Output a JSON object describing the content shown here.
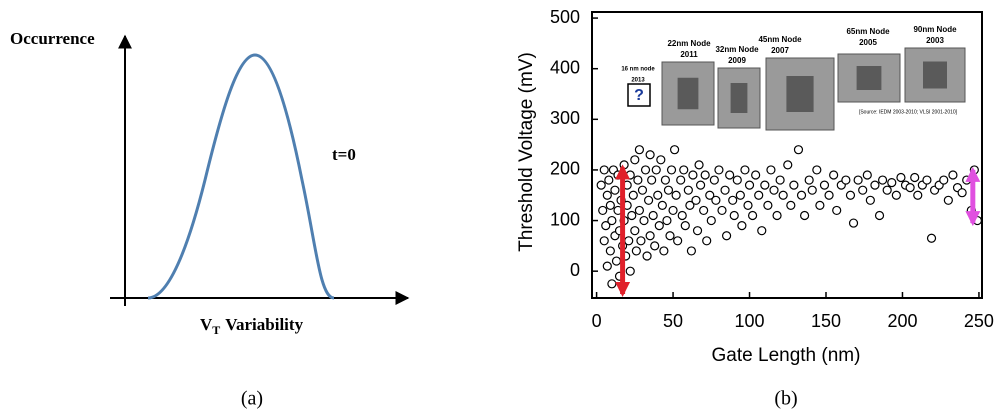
{
  "chart_data": [
    {
      "type": "curve",
      "ylabel": "Occurrence",
      "xlabel_symbol": "V",
      "xlabel_subscript": "T",
      "xlabel_rest": "Variability",
      "annotation": "t=0",
      "caption": "(a)",
      "color": "#4f7fb0"
    },
    {
      "type": "scatter",
      "xlabel": "Gate Length (nm)",
      "ylabel": "Threshold Voltage (mV)",
      "caption": "(b)",
      "xlim": [
        -3,
        252
      ],
      "ylim": [
        -53,
        512
      ],
      "xticks": [
        0,
        50,
        100,
        150,
        200,
        250
      ],
      "yticks": [
        0,
        100,
        200,
        300,
        400,
        500
      ],
      "grid": false,
      "marker_color": "#000000",
      "insets": [
        {
          "lines": [
            "16 nm node",
            "2013"
          ],
          "symbol": "?"
        },
        {
          "lines": [
            "22nm Node",
            "2011"
          ]
        },
        {
          "lines": [
            "32nm Node",
            "2009"
          ]
        },
        {
          "lines": [
            "45nm Node",
            "2007"
          ]
        },
        {
          "lines": [
            "65nm Node",
            "2005"
          ]
        },
        {
          "lines": [
            "90nm Node",
            "2003"
          ]
        }
      ],
      "source_note": "[Source: IEDM 2003-2010; VLSI 2001-2010]",
      "range_arrows": [
        {
          "x": 17,
          "low": -45,
          "high": 205,
          "color": "#e0202a"
        },
        {
          "x": 246,
          "low": 95,
          "high": 200,
          "color": "#e050e0"
        }
      ],
      "x": [
        3,
        4,
        5,
        5,
        6,
        7,
        7,
        8,
        9,
        9,
        10,
        10,
        11,
        12,
        12,
        13,
        14,
        14,
        15,
        15,
        16,
        17,
        18,
        18,
        19,
        20,
        20,
        21,
        22,
        22,
        23,
        24,
        25,
        25,
        26,
        27,
        28,
        28,
        29,
        30,
        31,
        32,
        33,
        34,
        35,
        35,
        36,
        37,
        38,
        39,
        40,
        41,
        42,
        43,
        44,
        45,
        46,
        47,
        48,
        49,
        50,
        51,
        52,
        53,
        55,
        56,
        57,
        58,
        60,
        61,
        62,
        63,
        65,
        66,
        67,
        68,
        70,
        71,
        72,
        74,
        75,
        77,
        78,
        80,
        82,
        84,
        85,
        87,
        89,
        90,
        92,
        94,
        95,
        97,
        99,
        100,
        102,
        104,
        106,
        108,
        110,
        112,
        114,
        116,
        118,
        120,
        122,
        125,
        127,
        129,
        132,
        134,
        136,
        139,
        141,
        144,
        146,
        149,
        152,
        155,
        157,
        160,
        163,
        166,
        168,
        171,
        174,
        177,
        179,
        182,
        185,
        187,
        190,
        193,
        196,
        199,
        202,
        205,
        208,
        210,
        213,
        216,
        219,
        221,
        224,
        227,
        230,
        233,
        236,
        239,
        242,
        245,
        247,
        249
      ],
      "y": [
        170,
        120,
        60,
        200,
        90,
        150,
        10,
        180,
        40,
        130,
        100,
        -25,
        200,
        70,
        160,
        20,
        120,
        190,
        80,
        -10,
        140,
        50,
        210,
        100,
        30,
        170,
        130,
        60,
        190,
        0,
        110,
        150,
        80,
        220,
        40,
        180,
        120,
        240,
        60,
        160,
        100,
        200,
        30,
        140,
        230,
        70,
        180,
        110,
        50,
        200,
        150,
        90,
        220,
        130,
        40,
        180,
        100,
        160,
        70,
        200,
        120,
        240,
        150,
        60,
        180,
        110,
        200,
        90,
        160,
        130,
        40,
        190,
        140,
        80,
        210,
        170,
        120,
        190,
        60,
        150,
        100,
        180,
        140,
        200,
        120,
        160,
        70,
        190,
        140,
        110,
        180,
        150,
        90,
        200,
        130,
        170,
        110,
        190,
        150,
        80,
        170,
        130,
        200,
        160,
        110,
        180,
        150,
        210,
        130,
        170,
        240,
        150,
        110,
        180,
        160,
        200,
        130,
        170,
        150,
        190,
        120,
        170,
        180,
        150,
        95,
        180,
        160,
        190,
        140,
        170,
        110,
        180,
        160,
        175,
        150,
        185,
        170,
        165,
        185,
        150,
        170,
        180,
        65,
        160,
        170,
        180,
        140,
        190,
        165,
        155,
        180,
        120,
        200,
        100
      ]
    }
  ]
}
